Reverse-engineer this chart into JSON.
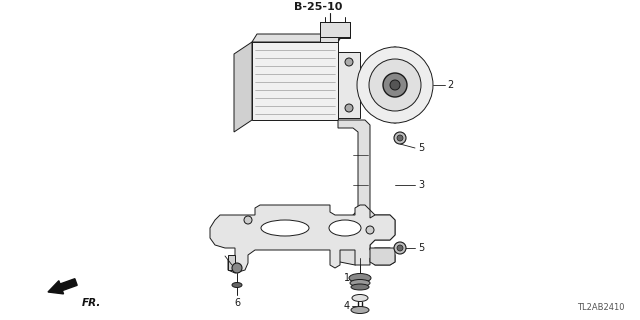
{
  "bg_color": "#ffffff",
  "line_color": "#1a1a1a",
  "label_color": "#111111",
  "ref_label": "B-25-10",
  "part_id": "TL2AB2410",
  "fig_width": 6.4,
  "fig_height": 3.2,
  "dpi": 100
}
